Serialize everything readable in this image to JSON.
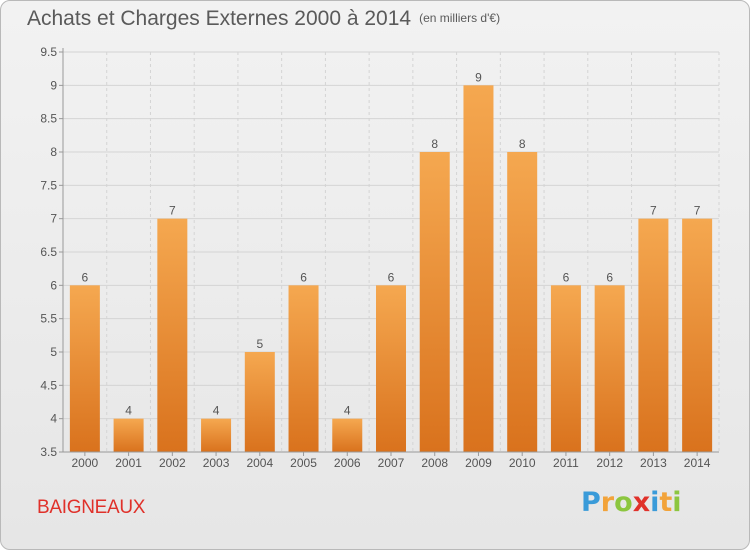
{
  "title": "Achats et Charges Externes 2000 à 2014",
  "unit": "(en milliers d'€)",
  "town": "BAIGNEAUX",
  "brand": {
    "letters": [
      "P",
      "r",
      "o",
      "x",
      "i",
      "t",
      "i"
    ],
    "colors": [
      "#3a9bd9",
      "#f2a33a",
      "#8cc63f",
      "#e0312a",
      "#3a9bd9",
      "#f2a33a",
      "#8cc63f"
    ]
  },
  "colors": {
    "bar_top": "#f5a850",
    "bar_bottom": "#d9721d",
    "grid": "#d4d4d4",
    "axis": "#999999",
    "text": "#555555"
  },
  "chart_data": {
    "type": "bar",
    "categories": [
      "2000",
      "2001",
      "2002",
      "2003",
      "2004",
      "2005",
      "2006",
      "2007",
      "2008",
      "2009",
      "2010",
      "2011",
      "2012",
      "2013",
      "2014"
    ],
    "values": [
      6,
      4,
      7,
      4,
      5,
      6,
      4,
      6,
      8,
      9,
      8,
      6,
      6,
      7,
      7
    ],
    "data_labels": [
      "6",
      "4",
      "7",
      "4",
      "5",
      "6",
      "4",
      "6",
      "8",
      "9",
      "8",
      "6",
      "6",
      "7",
      "7"
    ],
    "ylim": [
      3.5,
      9.5
    ],
    "yticks": [
      "3.5",
      "4",
      "4.5",
      "5",
      "5.5",
      "6",
      "6.5",
      "7",
      "7.5",
      "8",
      "8.5",
      "9",
      "9.5"
    ],
    "grid": true
  }
}
